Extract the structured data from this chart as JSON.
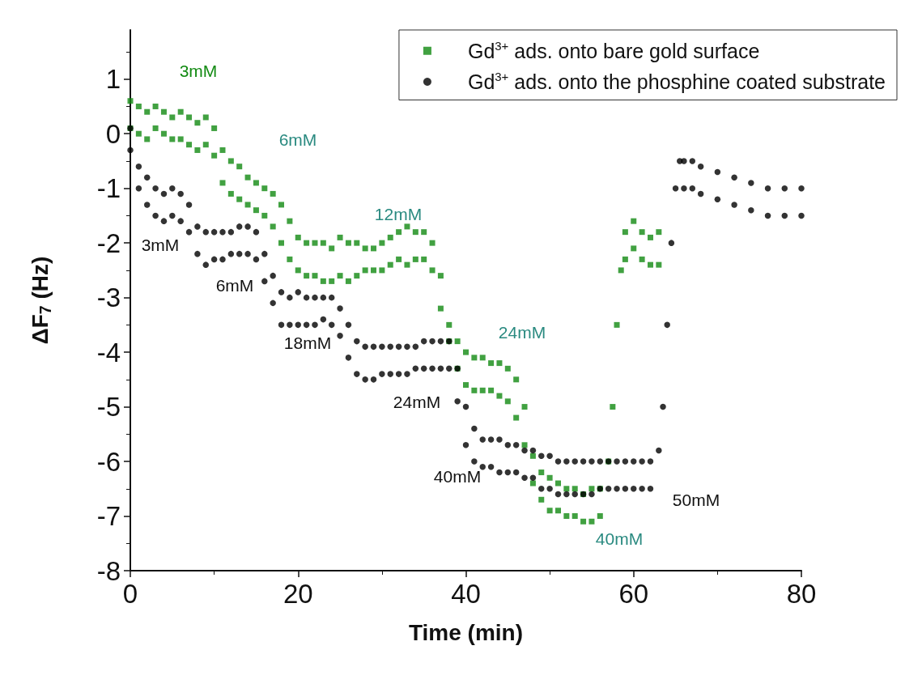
{
  "chart_data": {
    "type": "scatter",
    "xlabel": "Time (min)",
    "ylabel": "ΔF$_{7}$ (Hz)",
    "xlim": [
      0,
      80
    ],
    "xticks": [
      0,
      20,
      40,
      60,
      80
    ],
    "ylim": [
      -8,
      1.9
    ],
    "yticks": [
      -8,
      -7,
      -6,
      -5,
      -4,
      -3,
      -2,
      -1,
      0,
      1
    ],
    "grid": false,
    "legend": "top right",
    "series": [
      {
        "name": "Gd$^{3+}$ ads. onto bare gold surface",
        "color": "#128a12",
        "marker": "square",
        "x": [
          0,
          0,
          1,
          1,
          2,
          2,
          3,
          3,
          4,
          4,
          5,
          5,
          6,
          6,
          7,
          7,
          8,
          8,
          9,
          9,
          10,
          10,
          11,
          11,
          12,
          12,
          13,
          13,
          14,
          14,
          15,
          15,
          16,
          16,
          17,
          17,
          18,
          18,
          19,
          19,
          20,
          20,
          21,
          21,
          22,
          22,
          23,
          23,
          24,
          24,
          25,
          25,
          26,
          26,
          27,
          27,
          28,
          28,
          29,
          29,
          30,
          30,
          31,
          31,
          32,
          32,
          33,
          33,
          34,
          34,
          35,
          35,
          36,
          36,
          37,
          37,
          38,
          38,
          39,
          39,
          40,
          40,
          41,
          41,
          42,
          42,
          43,
          43,
          44,
          44,
          45,
          45,
          46,
          46,
          47,
          47,
          48,
          48,
          49,
          49,
          50,
          50,
          51,
          51,
          52,
          52,
          53,
          53,
          54,
          54,
          55,
          55,
          56,
          56,
          57,
          57.5,
          58,
          58.5,
          59,
          59,
          60,
          60,
          61,
          61,
          62,
          62,
          63,
          63
        ],
        "values": [
          0.6,
          0.1,
          0.5,
          0,
          0.4,
          -0.1,
          0.5,
          0.1,
          0.4,
          0,
          0.3,
          -0.1,
          0.4,
          -0.1,
          0.3,
          -0.2,
          0.2,
          -0.3,
          0.3,
          -0.2,
          0.1,
          -0.4,
          -0.3,
          -0.9,
          -0.5,
          -1.1,
          -0.6,
          -1.2,
          -0.8,
          -1.3,
          -0.9,
          -1.4,
          -1.0,
          -1.5,
          -1.1,
          -1.7,
          -1.3,
          -2.0,
          -1.6,
          -2.3,
          -1.9,
          -2.5,
          -2.0,
          -2.6,
          -2.0,
          -2.6,
          -2.0,
          -2.7,
          -2.1,
          -2.7,
          -1.9,
          -2.6,
          -2.0,
          -2.7,
          -2.0,
          -2.6,
          -2.1,
          -2.5,
          -2.1,
          -2.5,
          -2.0,
          -2.5,
          -1.9,
          -2.4,
          -1.8,
          -2.3,
          -1.7,
          -2.4,
          -1.8,
          -2.3,
          -1.8,
          -2.3,
          -2.0,
          -2.5,
          -2.6,
          -3.2,
          -3.5,
          -3.8,
          -3.8,
          -4.3,
          -4.0,
          -4.6,
          -4.1,
          -4.7,
          -4.1,
          -4.7,
          -4.2,
          -4.7,
          -4.2,
          -4.8,
          -4.3,
          -4.9,
          -4.5,
          -5.2,
          -5.0,
          -5.7,
          -5.9,
          -6.4,
          -6.2,
          -6.7,
          -6.3,
          -6.9,
          -6.4,
          -6.9,
          -6.5,
          -7.0,
          -6.5,
          -7.0,
          -6.6,
          -7.1,
          -6.5,
          -7.1,
          -6.5,
          -7.0,
          -6.0,
          -5.0,
          -3.5,
          -2.5,
          -1.8,
          -2.3,
          -1.6,
          -2.1,
          -1.8,
          -2.3,
          -1.9,
          -2.4,
          -1.8,
          -2.4
        ]
      },
      {
        "name": "Gd$^{3+}$ ads. onto the phosphine coated substrate",
        "color": "#000000",
        "marker": "circle",
        "x": [
          0,
          0,
          1,
          1,
          2,
          2,
          3,
          3,
          4,
          4,
          5,
          5,
          6,
          6,
          7,
          7,
          8,
          8,
          9,
          9,
          10,
          10,
          11,
          11,
          12,
          12,
          13,
          13,
          14,
          14,
          15,
          15,
          16,
          16,
          17,
          17,
          18,
          18,
          19,
          19,
          20,
          20,
          21,
          21,
          22,
          22,
          23,
          23,
          24,
          24,
          25,
          25,
          26,
          26,
          27,
          27,
          28,
          28,
          29,
          29,
          30,
          30,
          31,
          31,
          32,
          32,
          33,
          33,
          34,
          34,
          35,
          35,
          36,
          36,
          37,
          37,
          38,
          38,
          39,
          39,
          40,
          40,
          41,
          41,
          42,
          42,
          43,
          43,
          44,
          44,
          45,
          45,
          46,
          46,
          47,
          47,
          48,
          48,
          49,
          49,
          50,
          50,
          51,
          51,
          52,
          52,
          53,
          53,
          54,
          54,
          55,
          55,
          56,
          56,
          57,
          57,
          58,
          58,
          59,
          59,
          60,
          60,
          61,
          61,
          62,
          62,
          63,
          63.5,
          64,
          64.5,
          65,
          65.5,
          66,
          66,
          67,
          67,
          68,
          68,
          70,
          70,
          72,
          72,
          74,
          74,
          76,
          76,
          78,
          78,
          80,
          80
        ],
        "values": [
          0.1,
          -0.3,
          -0.6,
          -1.0,
          -0.8,
          -1.3,
          -1.0,
          -1.5,
          -1.1,
          -1.6,
          -1.0,
          -1.5,
          -1.1,
          -1.6,
          -1.3,
          -1.8,
          -1.7,
          -2.2,
          -1.8,
          -2.4,
          -1.8,
          -2.3,
          -1.8,
          -2.3,
          -1.8,
          -2.2,
          -1.7,
          -2.2,
          -1.7,
          -2.2,
          -1.8,
          -2.3,
          -2.2,
          -2.7,
          -2.6,
          -3.1,
          -2.9,
          -3.5,
          -3.0,
          -3.5,
          -2.9,
          -3.5,
          -3.0,
          -3.5,
          -3.0,
          -3.5,
          -3.0,
          -3.4,
          -3.0,
          -3.5,
          -3.2,
          -3.7,
          -3.5,
          -4.1,
          -3.8,
          -4.4,
          -3.9,
          -4.5,
          -3.9,
          -4.5,
          -3.9,
          -4.4,
          -3.9,
          -4.4,
          -3.9,
          -4.4,
          -3.9,
          -4.4,
          -3.9,
          -4.3,
          -3.8,
          -4.3,
          -3.8,
          -4.3,
          -3.8,
          -4.3,
          -3.8,
          -4.3,
          -4.3,
          -4.9,
          -5.0,
          -5.7,
          -5.4,
          -6.0,
          -5.6,
          -6.1,
          -5.6,
          -6.1,
          -5.6,
          -6.2,
          -5.7,
          -6.2,
          -5.7,
          -6.2,
          -5.8,
          -6.3,
          -5.8,
          -6.3,
          -5.9,
          -6.5,
          -5.9,
          -6.5,
          -6.0,
          -6.6,
          -6.0,
          -6.6,
          -6.0,
          -6.6,
          -6.0,
          -6.6,
          -6.0,
          -6.6,
          -6.0,
          -6.5,
          -6.0,
          -6.5,
          -6.0,
          -6.5,
          -6.0,
          -6.5,
          -6.0,
          -6.5,
          -6.0,
          -6.5,
          -6.0,
          -6.5,
          -5.8,
          -5.0,
          -3.5,
          -2.0,
          -1.0,
          -0.5,
          -0.5,
          -1.0,
          -0.5,
          -1.0,
          -0.6,
          -1.1,
          -0.7,
          -1.2,
          -0.8,
          -1.3,
          -0.9,
          -1.4,
          -1.0,
          -1.5,
          -1.0,
          -1.5,
          -1.0,
          -1.5
        ]
      }
    ],
    "annotations": [
      "3mM",
      "6mM",
      "12mM",
      "24mM",
      "40mM",
      "3mM",
      "6mM",
      "18mM",
      "24mM",
      "40mM",
      "50mM"
    ]
  }
}
